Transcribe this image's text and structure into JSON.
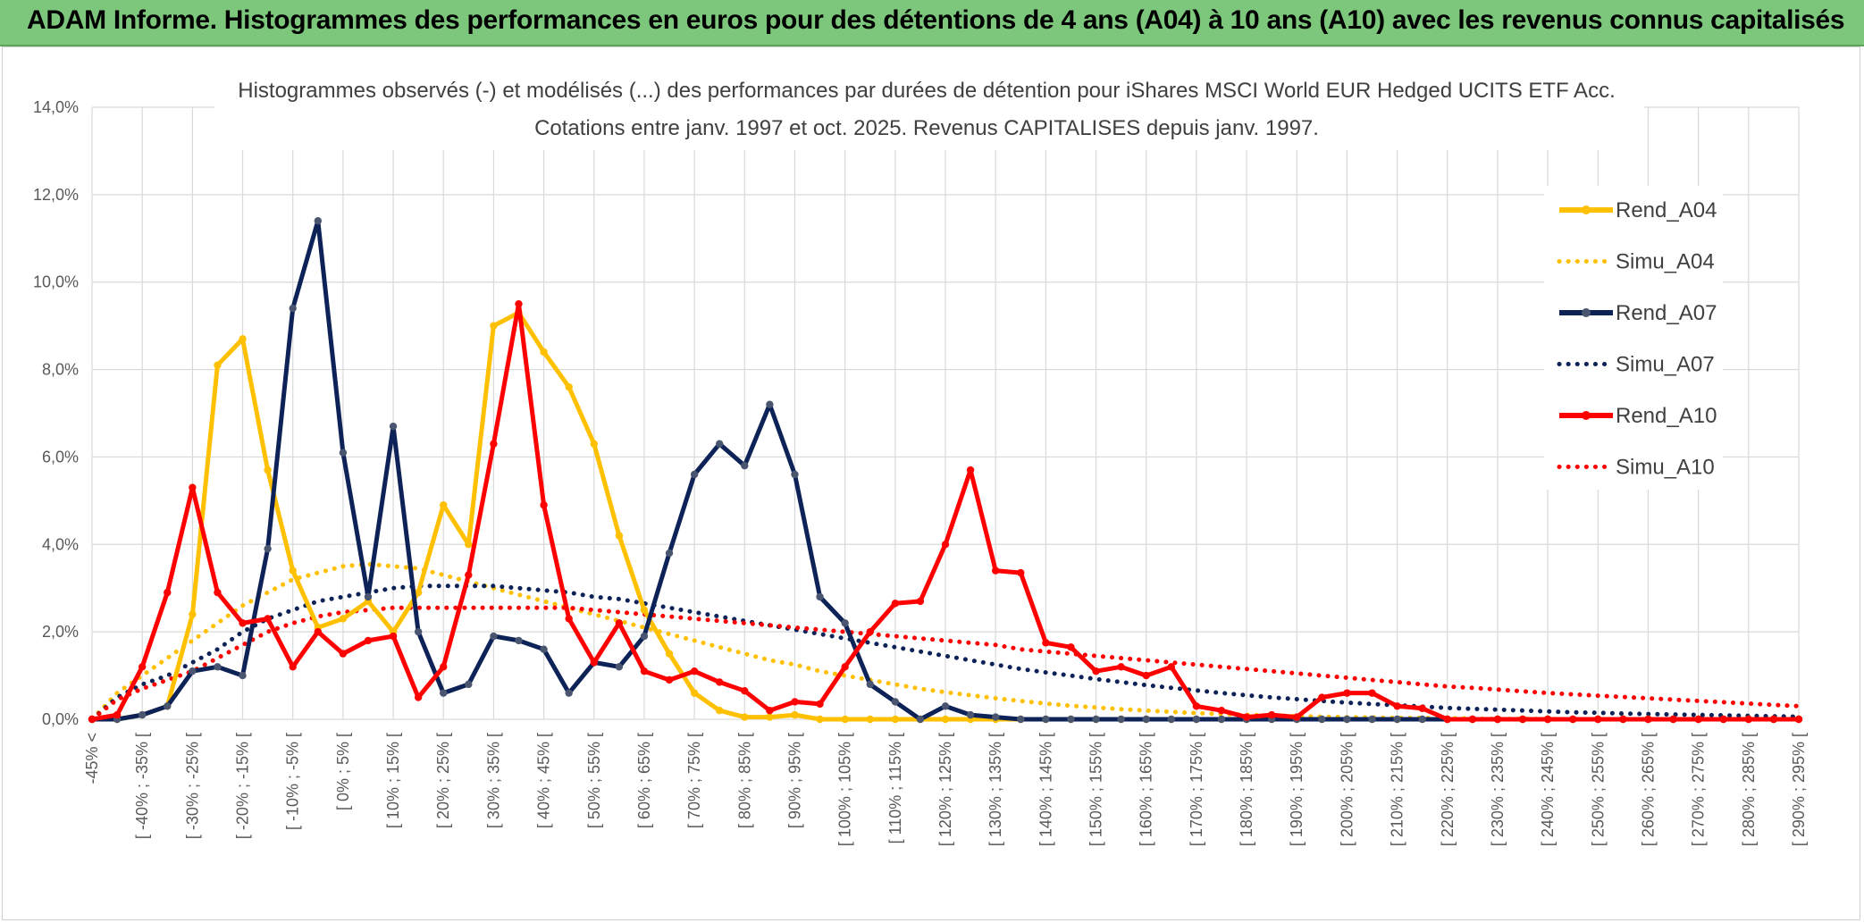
{
  "banner": {
    "text": "ADAM Informe. Histogrammes des performances en euros pour des détentions de 4 ans (A04) à 10 ans (A10) avec les revenus connus capitalisés"
  },
  "chart_data": {
    "type": "line",
    "title_lines": [
      "Histogrammes observés (-) et modélisés (...) des performances par durées de détention pour iShares MSCI World EUR Hedged UCITS ETF Acc.",
      "Cotations entre janv. 1997 et oct. 2025. Revenus CAPITALISES depuis janv. 1997."
    ],
    "ylim": [
      0,
      14
    ],
    "y_ticks": [
      "0,0%",
      "2,0%",
      "4,0%",
      "6,0%",
      "8,0%",
      "10,0%",
      "12,0%",
      "14,0%"
    ],
    "y_tick_values": [
      0,
      2,
      4,
      6,
      8,
      10,
      12,
      14
    ],
    "grid": true,
    "legend_position": "right",
    "category_labels": [
      "-45% <",
      "[ -40% ; -35% [",
      "[ -30% ; -25% [",
      "[ -20% ; -15% [",
      "[ -10% ; -5% [",
      "[ 0% ; 5% [",
      "[ 10% ; 15% [",
      "[ 20% ; 25% [",
      "[ 30% ; 35% [",
      "[ 40% ; 45% [",
      "[ 50% ; 55% [",
      "[ 60% ; 65% [",
      "[ 70% ; 75% [",
      "[ 80% ; 85% [",
      "[ 90% ; 95% [",
      "[ 100% ; 105% [",
      "[ 110% ; 115% [",
      "[ 120% ; 125% [",
      "[ 130% ; 135% [",
      "[ 140% ; 145% [",
      "[ 150% ; 155% [",
      "[ 160% ; 165% [",
      "[ 170% ; 175% [",
      "[ 180% ; 185% [",
      "[ 190% ; 195% [",
      "[ 200% ; 205% [",
      "[ 210% ; 215% [",
      "[ 220% ; 225% [",
      "[ 230% ; 235% [",
      "[ 240% ; 245% [",
      "[ 250% ; 255% [",
      "[ 260% ; 265% [",
      "[ 270% ; 275% [",
      "[ 280% ; 285% [",
      "[ 290% ; 295% ["
    ],
    "x_count": 69,
    "series": [
      {
        "name": "Rend_A04",
        "style": "solid",
        "color": "#ffc000",
        "values": [
          0,
          0,
          0.1,
          0.3,
          2.4,
          8.1,
          8.7,
          5.7,
          3.4,
          2.1,
          2.3,
          2.7,
          2.0,
          2.9,
          4.9,
          4.0,
          9.0,
          9.3,
          8.4,
          7.6,
          6.3,
          4.2,
          2.5,
          1.5,
          0.6,
          0.2,
          0.05,
          0.05,
          0.1,
          0,
          0,
          0,
          0,
          0,
          0,
          0,
          0,
          0,
          0,
          0,
          0,
          0,
          0,
          0,
          0,
          0,
          0,
          0,
          0,
          0,
          0,
          0,
          0,
          0,
          0,
          0,
          0,
          0,
          0,
          0,
          0,
          0,
          0,
          0,
          0,
          0,
          0,
          0,
          0
        ]
      },
      {
        "name": "Simu_A04",
        "style": "dotted",
        "color": "#ffc000",
        "values": [
          0,
          0.6,
          1.0,
          1.4,
          1.8,
          2.2,
          2.6,
          2.9,
          3.2,
          3.35,
          3.5,
          3.55,
          3.5,
          3.45,
          3.3,
          3.15,
          3.0,
          2.85,
          2.7,
          2.55,
          2.4,
          2.25,
          2.1,
          1.95,
          1.8,
          1.65,
          1.5,
          1.35,
          1.25,
          1.1,
          1.0,
          0.9,
          0.8,
          0.7,
          0.62,
          0.55,
          0.48,
          0.42,
          0.36,
          0.31,
          0.27,
          0.23,
          0.2,
          0.17,
          0.14,
          0.12,
          0.1,
          0.09,
          0.07,
          0.06,
          0.05,
          0.04,
          0.03,
          0.03,
          0.02,
          0.02,
          0.01,
          0.01,
          0.01,
          0,
          0,
          0,
          0,
          0,
          0,
          0,
          0,
          0,
          0
        ]
      },
      {
        "name": "Rend_A07",
        "style": "solid",
        "color": "#0d2257",
        "values": [
          0,
          0,
          0.1,
          0.3,
          1.1,
          1.2,
          1.0,
          3.9,
          9.4,
          11.4,
          6.1,
          2.8,
          6.7,
          2.0,
          0.6,
          0.8,
          1.9,
          1.8,
          1.6,
          0.6,
          1.3,
          1.2,
          1.9,
          3.8,
          5.6,
          6.3,
          5.8,
          7.2,
          5.6,
          2.8,
          2.2,
          0.8,
          0.4,
          0,
          0.3,
          0.1,
          0.05,
          0,
          0,
          0,
          0,
          0,
          0,
          0,
          0,
          0,
          0,
          0,
          0,
          0,
          0,
          0,
          0,
          0,
          0,
          0,
          0,
          0,
          0,
          0,
          0,
          0,
          0,
          0,
          0,
          0,
          0,
          0,
          0
        ]
      },
      {
        "name": "Simu_A07",
        "style": "dotted",
        "color": "#0d2257",
        "values": [
          0,
          0.5,
          0.8,
          1.0,
          1.3,
          1.6,
          2.0,
          2.3,
          2.5,
          2.7,
          2.8,
          2.9,
          3.0,
          3.05,
          3.05,
          3.05,
          3.05,
          3.0,
          2.95,
          2.9,
          2.8,
          2.75,
          2.65,
          2.55,
          2.45,
          2.35,
          2.25,
          2.15,
          2.05,
          1.95,
          1.85,
          1.75,
          1.65,
          1.55,
          1.45,
          1.35,
          1.25,
          1.15,
          1.07,
          1.0,
          0.92,
          0.85,
          0.78,
          0.72,
          0.66,
          0.6,
          0.55,
          0.5,
          0.46,
          0.42,
          0.38,
          0.35,
          0.32,
          0.29,
          0.26,
          0.24,
          0.22,
          0.2,
          0.18,
          0.16,
          0.15,
          0.13,
          0.12,
          0.11,
          0.1,
          0.09,
          0.08,
          0.07,
          0.06
        ]
      },
      {
        "name": "Rend_A10",
        "style": "solid",
        "color": "#ff0000",
        "values": [
          0,
          0.1,
          1.2,
          2.9,
          5.3,
          2.9,
          2.2,
          2.3,
          1.2,
          2.0,
          1.5,
          1.8,
          1.9,
          0.5,
          1.2,
          3.3,
          6.3,
          9.5,
          4.9,
          2.3,
          1.3,
          2.2,
          1.1,
          0.9,
          1.1,
          0.85,
          0.65,
          0.2,
          0.4,
          0.35,
          1.2,
          2.0,
          2.65,
          2.7,
          4.0,
          5.7,
          3.4,
          3.35,
          1.75,
          1.65,
          1.1,
          1.2,
          1.0,
          1.2,
          0.3,
          0.2,
          0.05,
          0.1,
          0.05,
          0.5,
          0.6,
          0.6,
          0.3,
          0.25,
          0,
          0,
          0,
          0,
          0,
          0,
          0,
          0,
          0,
          0,
          0,
          0,
          0,
          0,
          0
        ]
      },
      {
        "name": "Simu_A10",
        "style": "dotted",
        "color": "#ff0000",
        "values": [
          0,
          0.45,
          0.7,
          0.9,
          1.1,
          1.4,
          1.7,
          2.0,
          2.2,
          2.35,
          2.45,
          2.5,
          2.55,
          2.55,
          2.55,
          2.55,
          2.55,
          2.55,
          2.55,
          2.55,
          2.5,
          2.45,
          2.4,
          2.35,
          2.3,
          2.25,
          2.2,
          2.15,
          2.1,
          2.05,
          2.0,
          1.95,
          1.9,
          1.85,
          1.8,
          1.75,
          1.7,
          1.6,
          1.55,
          1.5,
          1.45,
          1.4,
          1.35,
          1.3,
          1.25,
          1.2,
          1.15,
          1.1,
          1.05,
          1.0,
          0.95,
          0.9,
          0.85,
          0.8,
          0.75,
          0.72,
          0.68,
          0.64,
          0.6,
          0.57,
          0.54,
          0.51,
          0.48,
          0.45,
          0.42,
          0.39,
          0.36,
          0.33,
          0.3
        ]
      }
    ]
  }
}
